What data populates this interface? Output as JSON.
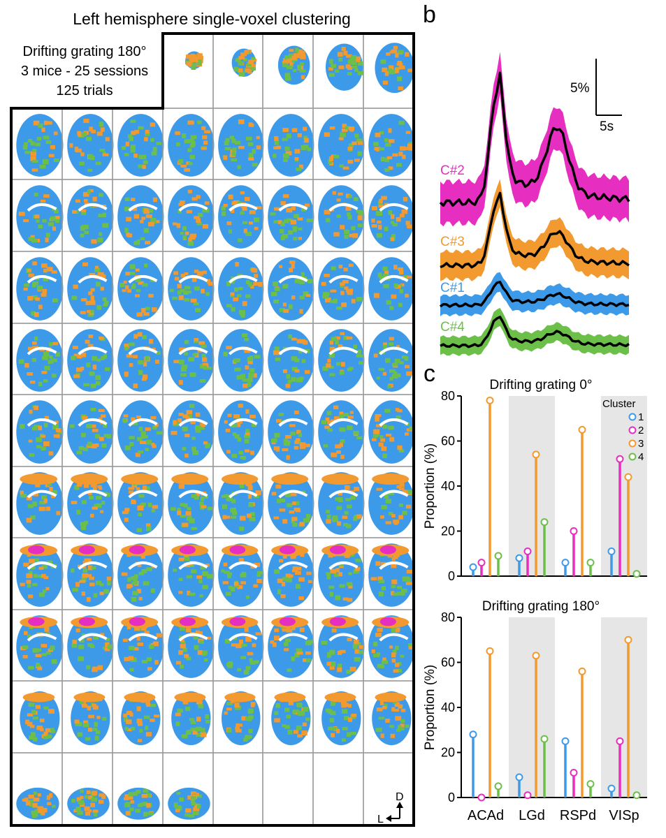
{
  "panel_a": {
    "title": "Left hemisphere single-voxel clustering",
    "info_lines": [
      "Drifting grating 180°",
      "3 mice - 25 sessions",
      "125 trials"
    ],
    "compass": {
      "dorsal": "D",
      "lateral": "L"
    },
    "grid": {
      "rows": 10,
      "cols": 8,
      "first_row_empty_cols": 3,
      "last_row_filled_cols": 4
    },
    "cluster_colors": {
      "1": "#3d9ae8",
      "2": "#e62fc0",
      "3": "#f29a2f",
      "4": "#6cc04a"
    }
  },
  "panel_b": {
    "label": "b",
    "scale_bar": {
      "y_label": "5%",
      "x_label": "5s"
    },
    "traces": [
      {
        "name": "C#2",
        "color": "#e62fc0"
      },
      {
        "name": "C#3",
        "color": "#f29a2f"
      },
      {
        "name": "C#1",
        "color": "#3d9ae8"
      },
      {
        "name": "C#4",
        "color": "#6cc04a"
      }
    ]
  },
  "panel_c": {
    "label": "c",
    "legend_title": "Cluster",
    "cluster_names": [
      "1",
      "2",
      "3",
      "4"
    ]
  },
  "chart_data": [
    {
      "type": "bar",
      "title": "Drifting grating 0°",
      "ylabel": "Proportion (%)",
      "ylim": [
        0,
        80
      ],
      "yticks": [
        "0",
        "20",
        "40",
        "60",
        "80"
      ],
      "categories": [
        "ACAd",
        "LGd",
        "RSPd",
        "VISp"
      ],
      "series": [
        {
          "name": "1",
          "color": "#3d9ae8",
          "values": [
            4,
            8,
            6,
            11
          ]
        },
        {
          "name": "2",
          "color": "#e62fc0",
          "values": [
            6,
            11,
            20,
            52
          ]
        },
        {
          "name": "3",
          "color": "#f29a2f",
          "values": [
            78,
            54,
            65,
            44
          ]
        },
        {
          "name": "4",
          "color": "#6cc04a",
          "values": [
            9,
            24,
            6,
            1
          ]
        }
      ],
      "shaded_categories": [
        "LGd",
        "VISp"
      ],
      "legend": "top-right"
    },
    {
      "type": "bar",
      "title": "Drifting grating 180°",
      "ylabel": "Proportion (%)",
      "ylim": [
        0,
        80
      ],
      "yticks": [
        "0",
        "20",
        "40",
        "60",
        "80"
      ],
      "categories": [
        "ACAd",
        "LGd",
        "RSPd",
        "VISp"
      ],
      "series": [
        {
          "name": "1",
          "color": "#3d9ae8",
          "values": [
            28,
            9,
            25,
            4
          ]
        },
        {
          "name": "2",
          "color": "#e62fc0",
          "values": [
            0,
            1,
            11,
            25
          ]
        },
        {
          "name": "3",
          "color": "#f29a2f",
          "values": [
            65,
            63,
            56,
            70
          ]
        },
        {
          "name": "4",
          "color": "#6cc04a",
          "values": [
            5,
            26,
            6,
            1
          ]
        }
      ],
      "shaded_categories": [
        "LGd",
        "VISp"
      ]
    }
  ]
}
